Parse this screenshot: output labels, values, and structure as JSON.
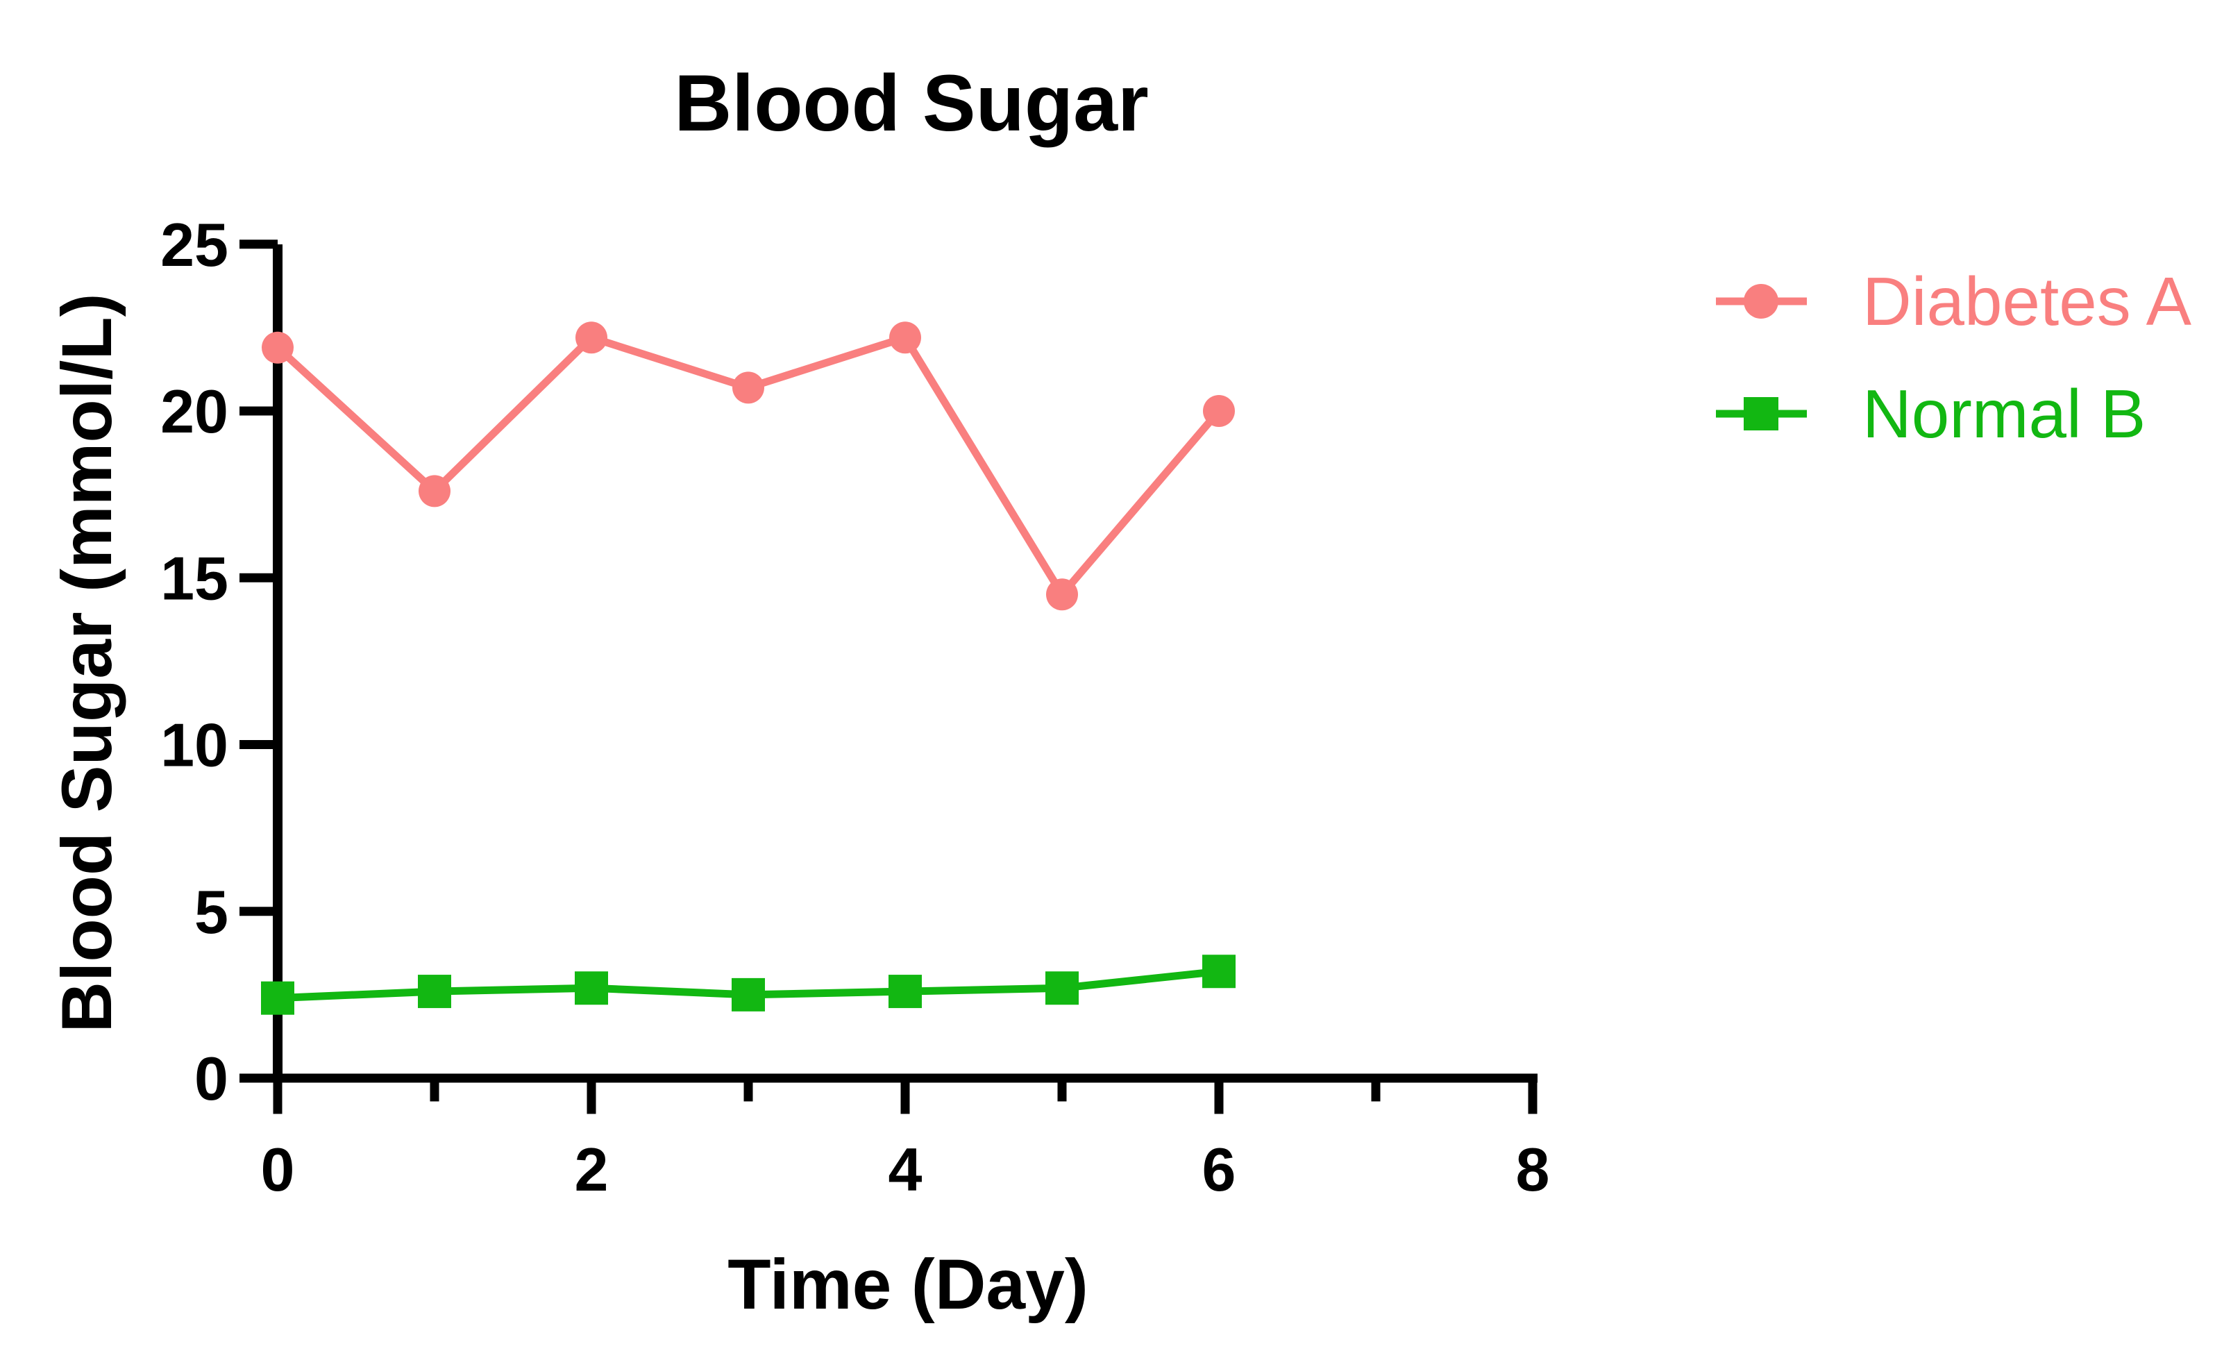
{
  "chart_data": {
    "type": "line",
    "title": "Blood Sugar",
    "xlabel": "Time (Day)",
    "ylabel": "Blood Sugar (mmol/L)",
    "x": [
      0,
      1,
      2,
      3,
      4,
      5,
      6
    ],
    "series": [
      {
        "name": "Diabetes A",
        "color": "#F97F7F",
        "marker": "circle",
        "values": [
          21.9,
          17.6,
          22.2,
          20.7,
          22.2,
          14.5,
          20.0
        ]
      },
      {
        "name": "Normal B",
        "color": "#12B712",
        "marker": "square",
        "values": [
          2.4,
          2.6,
          2.7,
          2.5,
          2.6,
          2.7,
          3.2
        ]
      }
    ],
    "x_axis": {
      "min": 0,
      "max": 8,
      "major_ticks": [
        0,
        2,
        4,
        6,
        8
      ],
      "minor_ticks": [
        1,
        3,
        5,
        7
      ]
    },
    "y_axis": {
      "min": 0,
      "max": 25,
      "ticks": [
        0,
        5,
        10,
        15,
        20,
        25
      ]
    },
    "legend": {
      "position": "right"
    },
    "grid": false,
    "axis_color": "#000000",
    "background": "#FFFFFF"
  }
}
